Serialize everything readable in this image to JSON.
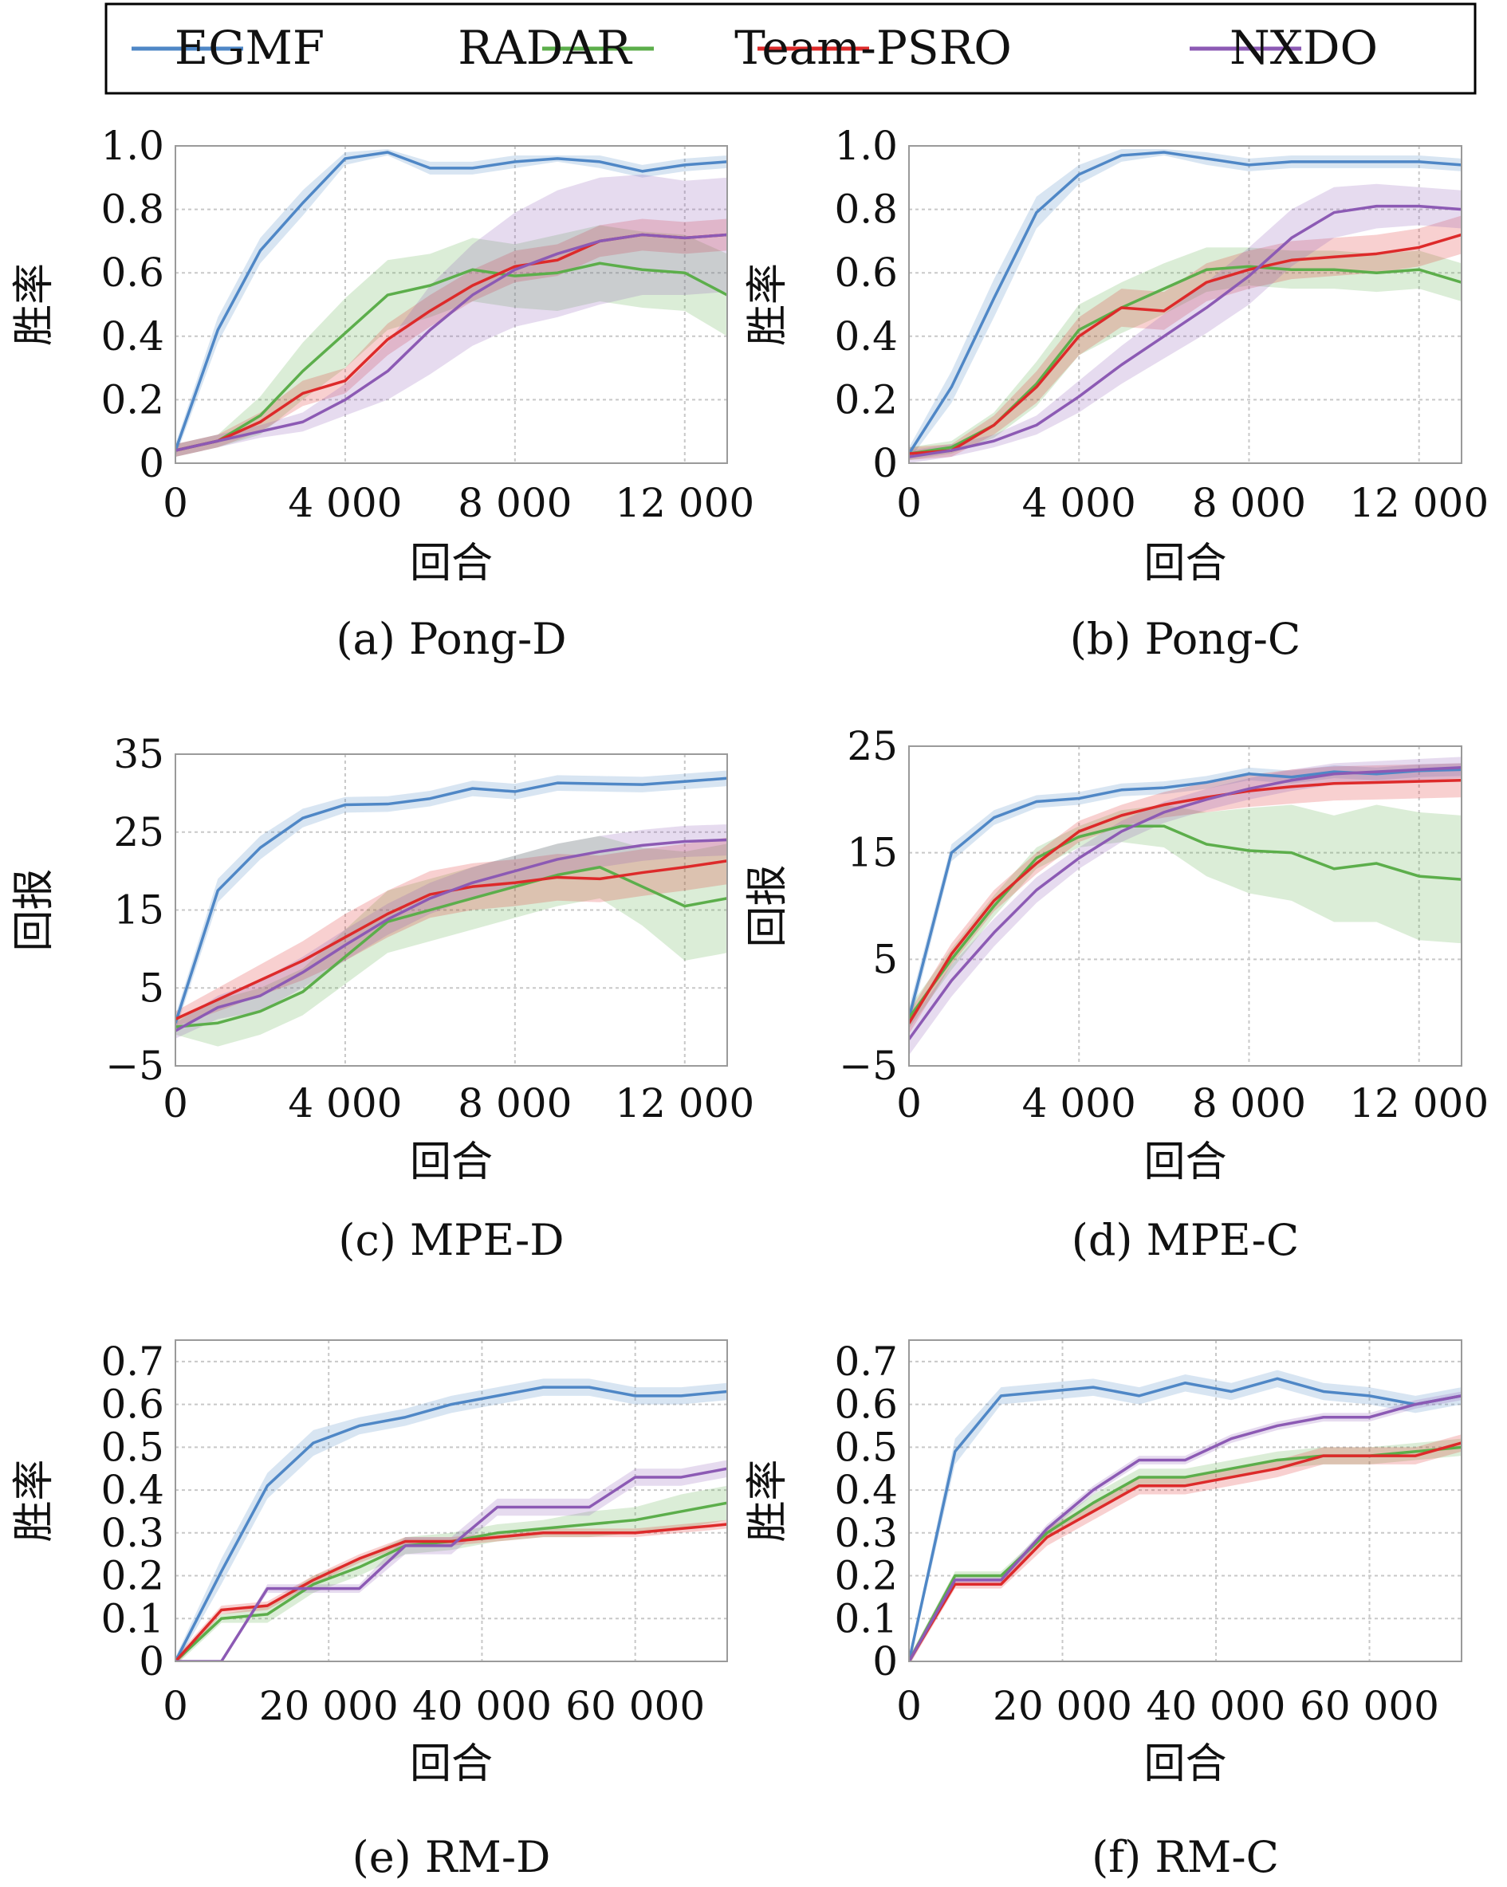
{
  "legend": [
    {
      "name": "EGMF",
      "color": "#4f87c6"
    },
    {
      "name": "RADAR",
      "color": "#5cae4b"
    },
    {
      "name": "Team-PSRO",
      "color": "#dd2a2a"
    },
    {
      "name": "NXDO",
      "color": "#8c5ab4"
    }
  ],
  "chart_data": [
    {
      "type": "line",
      "caption": "(a) Pong-D",
      "xlabel": "回合",
      "ylabel": "胜率",
      "xlim": [
        0,
        13000
      ],
      "ylim": [
        0,
        1.0
      ],
      "xticks": [
        0,
        4000,
        8000,
        12000
      ],
      "xtick_labels": [
        "0",
        "4 000",
        "8 000",
        "12 000"
      ],
      "yticks": [
        0,
        0.2,
        0.4,
        0.6,
        0.8,
        1.0
      ],
      "ytick_labels": [
        "0",
        "0.2",
        "0.4",
        "0.6",
        "0.8",
        "1.0"
      ],
      "x": [
        0,
        1000,
        2000,
        3000,
        4000,
        5000,
        6000,
        7000,
        8000,
        9000,
        10000,
        11000,
        12000,
        13000
      ],
      "series": [
        {
          "name": "EGMF",
          "values": [
            0.04,
            0.42,
            0.67,
            0.82,
            0.96,
            0.98,
            0.93,
            0.93,
            0.95,
            0.96,
            0.95,
            0.92,
            0.94,
            0.95
          ],
          "band": [
            0.02,
            0.04,
            0.04,
            0.04,
            0.02,
            0.01,
            0.02,
            0.02,
            0.02,
            0.01,
            0.02,
            0.02,
            0.02,
            0.02
          ]
        },
        {
          "name": "RADAR",
          "values": [
            0.04,
            0.07,
            0.15,
            0.29,
            0.41,
            0.53,
            0.56,
            0.61,
            0.59,
            0.6,
            0.63,
            0.61,
            0.6,
            0.53
          ],
          "band": [
            0.02,
            0.02,
            0.06,
            0.09,
            0.11,
            0.11,
            0.1,
            0.1,
            0.1,
            0.12,
            0.12,
            0.12,
            0.12,
            0.13
          ]
        },
        {
          "name": "Team-PSRO",
          "values": [
            0.04,
            0.07,
            0.13,
            0.22,
            0.26,
            0.39,
            0.48,
            0.56,
            0.62,
            0.64,
            0.7,
            0.72,
            0.71,
            0.72
          ],
          "band": [
            0.02,
            0.02,
            0.03,
            0.04,
            0.04,
            0.05,
            0.05,
            0.05,
            0.05,
            0.05,
            0.05,
            0.05,
            0.05,
            0.05
          ]
        },
        {
          "name": "NXDO",
          "values": [
            0.04,
            0.07,
            0.1,
            0.13,
            0.2,
            0.29,
            0.42,
            0.53,
            0.61,
            0.66,
            0.7,
            0.72,
            0.71,
            0.72
          ],
          "band": [
            0.02,
            0.02,
            0.02,
            0.03,
            0.05,
            0.09,
            0.14,
            0.16,
            0.18,
            0.2,
            0.2,
            0.19,
            0.18,
            0.18
          ]
        }
      ]
    },
    {
      "type": "line",
      "caption": "(b) Pong-C",
      "xlabel": "回合",
      "ylabel": "胜率",
      "xlim": [
        0,
        13000
      ],
      "ylim": [
        0,
        1.0
      ],
      "xticks": [
        0,
        4000,
        8000,
        12000
      ],
      "xtick_labels": [
        "0",
        "4 000",
        "8 000",
        "12 000"
      ],
      "yticks": [
        0,
        0.2,
        0.4,
        0.6,
        0.8,
        1.0
      ],
      "ytick_labels": [
        "0",
        "0.2",
        "0.4",
        "0.6",
        "0.8",
        "1.0"
      ],
      "x": [
        0,
        1000,
        2000,
        3000,
        4000,
        5000,
        6000,
        7000,
        8000,
        9000,
        10000,
        11000,
        12000,
        13000
      ],
      "series": [
        {
          "name": "EGMF",
          "values": [
            0.03,
            0.24,
            0.52,
            0.79,
            0.91,
            0.97,
            0.98,
            0.96,
            0.94,
            0.95,
            0.95,
            0.95,
            0.95,
            0.94
          ],
          "band": [
            0.02,
            0.05,
            0.06,
            0.05,
            0.03,
            0.02,
            0.01,
            0.02,
            0.02,
            0.02,
            0.02,
            0.02,
            0.02,
            0.02
          ]
        },
        {
          "name": "RADAR",
          "values": [
            0.03,
            0.05,
            0.12,
            0.25,
            0.42,
            0.49,
            0.55,
            0.61,
            0.62,
            0.61,
            0.61,
            0.6,
            0.61,
            0.57
          ],
          "band": [
            0.02,
            0.02,
            0.04,
            0.07,
            0.08,
            0.08,
            0.08,
            0.07,
            0.06,
            0.06,
            0.06,
            0.06,
            0.06,
            0.06
          ]
        },
        {
          "name": "Team-PSRO",
          "values": [
            0.03,
            0.04,
            0.12,
            0.24,
            0.4,
            0.49,
            0.48,
            0.57,
            0.61,
            0.64,
            0.65,
            0.66,
            0.68,
            0.72
          ],
          "band": [
            0.02,
            0.02,
            0.03,
            0.05,
            0.06,
            0.06,
            0.06,
            0.06,
            0.06,
            0.06,
            0.06,
            0.06,
            0.06,
            0.06
          ]
        },
        {
          "name": "NXDO",
          "values": [
            0.02,
            0.04,
            0.07,
            0.12,
            0.21,
            0.31,
            0.4,
            0.49,
            0.59,
            0.71,
            0.79,
            0.81,
            0.81,
            0.8
          ],
          "band": [
            0.02,
            0.02,
            0.02,
            0.03,
            0.05,
            0.06,
            0.07,
            0.08,
            0.09,
            0.09,
            0.08,
            0.07,
            0.06,
            0.06
          ]
        }
      ]
    },
    {
      "type": "line",
      "caption": "(c) MPE-D",
      "xlabel": "回合",
      "ylabel": "回报",
      "xlim": [
        0,
        13000
      ],
      "ylim": [
        -5,
        35
      ],
      "xticks": [
        0,
        4000,
        8000,
        12000
      ],
      "xtick_labels": [
        "0",
        "4 000",
        "8 000",
        "12 000"
      ],
      "yticks": [
        -5,
        5,
        15,
        25,
        35
      ],
      "ytick_labels": [
        "−5",
        "5",
        "15",
        "25",
        "35"
      ],
      "x": [
        0,
        1000,
        2000,
        3000,
        4000,
        5000,
        6000,
        7000,
        8000,
        9000,
        10000,
        11000,
        12000,
        13000
      ],
      "series": [
        {
          "name": "EGMF",
          "values": [
            0.5,
            17.5,
            23.0,
            26.8,
            28.5,
            28.6,
            29.3,
            30.6,
            30.2,
            31.3,
            31.2,
            31.1,
            31.5,
            31.9
          ],
          "band": [
            1.0,
            1.5,
            1.5,
            1.2,
            1.0,
            1.0,
            1.0,
            1.0,
            1.0,
            1.0,
            1.0,
            1.0,
            1.0,
            1.0
          ]
        },
        {
          "name": "RADAR",
          "values": [
            0.0,
            0.5,
            2.0,
            4.5,
            9.0,
            13.5,
            15.0,
            16.5,
            18.0,
            19.5,
            20.5,
            18.0,
            15.5,
            16.5
          ],
          "band": [
            1.0,
            3.0,
            3.0,
            3.0,
            3.5,
            4.0,
            4.0,
            4.0,
            4.0,
            4.0,
            4.0,
            5.0,
            7.0,
            7.0
          ]
        },
        {
          "name": "Team-PSRO",
          "values": [
            1.0,
            3.5,
            6.0,
            8.5,
            11.5,
            14.5,
            17.0,
            18.0,
            18.5,
            19.2,
            19.0,
            19.8,
            20.5,
            21.3
          ],
          "band": [
            1.0,
            1.5,
            2.0,
            2.5,
            3.0,
            3.0,
            3.0,
            3.0,
            3.0,
            3.0,
            3.0,
            3.0,
            3.0,
            3.0
          ]
        },
        {
          "name": "NXDO",
          "values": [
            -0.5,
            2.5,
            4.0,
            7.0,
            10.5,
            13.8,
            16.5,
            18.5,
            20.0,
            21.5,
            22.5,
            23.3,
            23.8,
            24.0
          ],
          "band": [
            1.0,
            1.5,
            2.0,
            2.0,
            2.0,
            2.0,
            2.0,
            2.0,
            2.0,
            2.0,
            2.0,
            2.0,
            2.0,
            2.0
          ]
        }
      ]
    },
    {
      "type": "line",
      "caption": "(d) MPE-C",
      "xlabel": "回合",
      "ylabel": "回报",
      "xlim": [
        0,
        13000
      ],
      "ylim": [
        -5,
        25
      ],
      "xticks": [
        0,
        4000,
        8000,
        12000
      ],
      "xtick_labels": [
        "0",
        "4 000",
        "8 000",
        "12 000"
      ],
      "yticks": [
        -5,
        5,
        15,
        25
      ],
      "ytick_labels": [
        "−5",
        "5",
        "15",
        "25"
      ],
      "x": [
        0,
        1000,
        2000,
        3000,
        4000,
        5000,
        6000,
        7000,
        8000,
        9000,
        10000,
        11000,
        12000,
        13000
      ],
      "series": [
        {
          "name": "EGMF",
          "values": [
            -0.5,
            15.0,
            18.3,
            19.8,
            20.1,
            20.9,
            21.1,
            21.6,
            22.4,
            22.1,
            22.6,
            22.4,
            22.7,
            22.8
          ],
          "band": [
            1.0,
            0.8,
            0.7,
            0.6,
            0.6,
            0.6,
            0.6,
            0.6,
            0.6,
            0.6,
            0.6,
            0.6,
            0.6,
            0.6
          ]
        },
        {
          "name": "RADAR",
          "values": [
            -0.5,
            5.0,
            10.0,
            14.5,
            16.5,
            17.5,
            17.5,
            15.8,
            15.2,
            15.0,
            13.5,
            14.0,
            12.8,
            12.5
          ],
          "band": [
            1.0,
            1.0,
            1.0,
            1.0,
            1.0,
            1.5,
            2.0,
            3.0,
            4.0,
            4.5,
            5.0,
            5.5,
            6.0,
            6.0
          ]
        },
        {
          "name": "Team-PSRO",
          "values": [
            -1.0,
            5.5,
            10.5,
            14.0,
            17.0,
            18.5,
            19.5,
            20.2,
            20.8,
            21.2,
            21.5,
            21.6,
            21.7,
            21.8
          ],
          "band": [
            1.0,
            1.0,
            1.0,
            1.0,
            1.0,
            1.0,
            1.2,
            1.4,
            1.5,
            1.6,
            1.6,
            1.6,
            1.6,
            1.6
          ]
        },
        {
          "name": "NXDO",
          "values": [
            -2.5,
            3.0,
            7.5,
            11.5,
            14.5,
            17.0,
            18.8,
            20.0,
            21.0,
            21.8,
            22.4,
            22.6,
            22.8,
            23.0
          ],
          "band": [
            1.5,
            1.5,
            1.3,
            1.2,
            1.0,
            1.0,
            1.0,
            1.0,
            1.0,
            1.0,
            1.0,
            1.0,
            1.0,
            1.0
          ]
        }
      ]
    },
    {
      "type": "line",
      "caption": "(e) RM-D",
      "xlabel": "回合",
      "ylabel": "胜率",
      "xlim": [
        0,
        72000
      ],
      "ylim": [
        0,
        0.75
      ],
      "xticks": [
        0,
        20000,
        40000,
        60000
      ],
      "xtick_labels": [
        "0",
        "20 000",
        "40 000",
        "60 000"
      ],
      "yticks": [
        0,
        0.1,
        0.2,
        0.3,
        0.4,
        0.5,
        0.6,
        0.7
      ],
      "ytick_labels": [
        "0",
        "0.1",
        "0.2",
        "0.3",
        "0.4",
        "0.5",
        "0.6",
        "0.7"
      ],
      "x": [
        0,
        6000,
        12000,
        18000,
        24000,
        30000,
        36000,
        42000,
        48000,
        54000,
        60000,
        66000,
        72000
      ],
      "series": [
        {
          "name": "EGMF",
          "values": [
            0.0,
            0.21,
            0.41,
            0.51,
            0.55,
            0.57,
            0.6,
            0.62,
            0.64,
            0.64,
            0.62,
            0.62,
            0.63
          ],
          "band": [
            0.01,
            0.03,
            0.03,
            0.03,
            0.02,
            0.02,
            0.02,
            0.02,
            0.02,
            0.02,
            0.02,
            0.02,
            0.02
          ]
        },
        {
          "name": "RADAR",
          "values": [
            0.0,
            0.1,
            0.11,
            0.18,
            0.22,
            0.27,
            0.28,
            0.3,
            0.31,
            0.32,
            0.33,
            0.35,
            0.37
          ],
          "band": [
            0.01,
            0.01,
            0.02,
            0.02,
            0.02,
            0.02,
            0.02,
            0.02,
            0.02,
            0.03,
            0.03,
            0.04,
            0.04
          ]
        },
        {
          "name": "Team-PSRO",
          "values": [
            0.0,
            0.12,
            0.13,
            0.19,
            0.24,
            0.28,
            0.28,
            0.29,
            0.3,
            0.3,
            0.3,
            0.31,
            0.32
          ],
          "band": [
            0.01,
            0.01,
            0.01,
            0.01,
            0.01,
            0.01,
            0.01,
            0.01,
            0.01,
            0.01,
            0.01,
            0.01,
            0.01
          ]
        },
        {
          "name": "NXDO",
          "values": [
            0.0,
            0.0,
            0.17,
            0.17,
            0.17,
            0.27,
            0.27,
            0.36,
            0.36,
            0.36,
            0.43,
            0.43,
            0.45
          ],
          "band": [
            0.0,
            0.0,
            0.01,
            0.01,
            0.01,
            0.02,
            0.02,
            0.02,
            0.02,
            0.02,
            0.02,
            0.02,
            0.02
          ]
        }
      ]
    },
    {
      "type": "line",
      "caption": "(f) RM-C",
      "xlabel": "回合",
      "ylabel": "胜率",
      "xlim": [
        0,
        72000
      ],
      "ylim": [
        0,
        0.75
      ],
      "xticks": [
        0,
        20000,
        40000,
        60000
      ],
      "xtick_labels": [
        "0",
        "20 000",
        "40 000",
        "60 000"
      ],
      "yticks": [
        0,
        0.1,
        0.2,
        0.3,
        0.4,
        0.5,
        0.6,
        0.7
      ],
      "ytick_labels": [
        "0",
        "0.1",
        "0.2",
        "0.3",
        "0.4",
        "0.5",
        "0.6",
        "0.7"
      ],
      "x": [
        0,
        6000,
        12000,
        18000,
        24000,
        30000,
        36000,
        42000,
        48000,
        54000,
        60000,
        66000,
        72000
      ],
      "series": [
        {
          "name": "EGMF",
          "values": [
            0.0,
            0.49,
            0.62,
            0.63,
            0.64,
            0.62,
            0.65,
            0.63,
            0.66,
            0.63,
            0.62,
            0.6,
            0.62
          ],
          "band": [
            0.01,
            0.03,
            0.02,
            0.02,
            0.02,
            0.02,
            0.02,
            0.02,
            0.02,
            0.02,
            0.02,
            0.02,
            0.02
          ]
        },
        {
          "name": "RADAR",
          "values": [
            0.0,
            0.2,
            0.2,
            0.3,
            0.37,
            0.43,
            0.43,
            0.45,
            0.47,
            0.48,
            0.48,
            0.49,
            0.5
          ],
          "band": [
            0.01,
            0.01,
            0.01,
            0.01,
            0.02,
            0.02,
            0.02,
            0.02,
            0.02,
            0.02,
            0.02,
            0.02,
            0.02
          ]
        },
        {
          "name": "Team-PSRO",
          "values": [
            0.0,
            0.18,
            0.18,
            0.29,
            0.35,
            0.41,
            0.41,
            0.43,
            0.45,
            0.48,
            0.48,
            0.48,
            0.51
          ],
          "band": [
            0.01,
            0.01,
            0.01,
            0.02,
            0.02,
            0.02,
            0.02,
            0.02,
            0.02,
            0.02,
            0.02,
            0.02,
            0.02
          ]
        },
        {
          "name": "NXDO",
          "values": [
            0.0,
            0.19,
            0.19,
            0.31,
            0.4,
            0.47,
            0.47,
            0.52,
            0.55,
            0.57,
            0.57,
            0.6,
            0.62
          ],
          "band": [
            0.01,
            0.01,
            0.01,
            0.01,
            0.01,
            0.01,
            0.01,
            0.01,
            0.01,
            0.01,
            0.01,
            0.01,
            0.01
          ]
        }
      ]
    }
  ]
}
